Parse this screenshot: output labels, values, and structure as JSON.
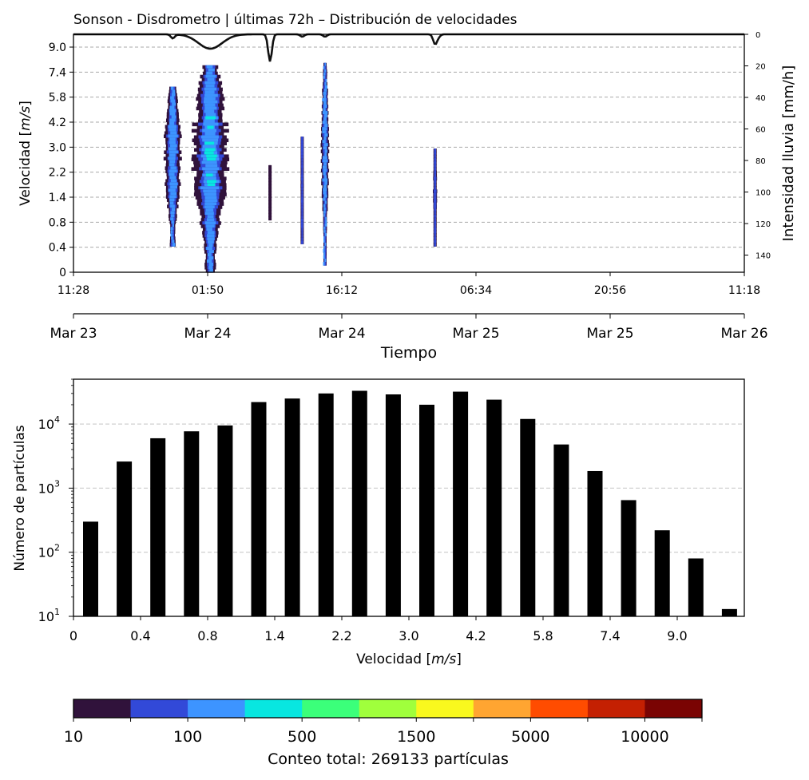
{
  "title": "Sonson - Disdrometro | últimas 72h – Distribución de velocidades",
  "chart_data": [
    {
      "type": "heatmap",
      "ylabel": "Velocidad [$m/s$]",
      "ylabel_text": "Velocidad [m/s]",
      "ylabel_unit_plain_1": "Velocidad [",
      "ylabel_unit_italic": "m/s",
      "ylabel_unit_plain_2": "]",
      "y2label": "Intensidad lluvia [mm/h]",
      "xlabel": "Tiempo",
      "y_ticks": [
        "0",
        "0.4",
        "0.8",
        "1.4",
        "2.2",
        "3.0",
        "4.2",
        "5.8",
        "7.4",
        "9.0"
      ],
      "y2_ticks": [
        "0",
        "20",
        "40",
        "60",
        "80",
        "100",
        "120",
        "140"
      ],
      "x_time_ticks": [
        "11:28",
        "01:50",
        "16:12",
        "06:34",
        "20:56",
        "11:18"
      ],
      "x_date_ticks": [
        "Mar 23",
        "Mar 24",
        "Mar 24",
        "Mar 25",
        "Mar 25",
        "Mar 26"
      ],
      "grid": "horizontal dashed",
      "y2_inverted": true,
      "rain_events_time_fraction": [
        0.148,
        0.204,
        0.293,
        0.341,
        0.375,
        0.539,
        0.544
      ],
      "rain_line_color": "#111111"
    },
    {
      "type": "bar",
      "xlabel": "Velocidad [m/s]",
      "xlabel_plain_1": "Velocidad [",
      "xlabel_italic": "m/s",
      "xlabel_plain_2": "]",
      "ylabel": "Número de partículas",
      "yscale": "log",
      "ylim": [
        10,
        50000
      ],
      "y_ticks": [
        "10",
        "10",
        "10",
        "10"
      ],
      "y_tick_exps": [
        "1",
        "2",
        "3",
        "4"
      ],
      "x_ticks": [
        "0",
        "0.4",
        "0.8",
        "1.4",
        "2.2",
        "3.0",
        "4.2",
        "5.8",
        "7.4",
        "9.0"
      ],
      "values": [
        300,
        2600,
        6000,
        7700,
        9500,
        22000,
        25000,
        30000,
        33000,
        29000,
        20000,
        32000,
        24000,
        12000,
        4800,
        1850,
        650,
        220,
        80,
        13
      ],
      "bar_color": "#000000",
      "grid": "horizontal dashed"
    },
    {
      "type": "colorbar",
      "label": "Conteo total: 269133 partículas",
      "tick_labels": [
        "10",
        "100",
        "500",
        "1500",
        "5000",
        "10000"
      ],
      "colors": [
        "#30123b",
        "#3249d8",
        "#3d94ff",
        "#08e6e0",
        "#3bff7a",
        "#a0ff3c",
        "#f9f81e",
        "#ffa531",
        "#ff4c00",
        "#c42002",
        "#7a0403"
      ]
    }
  ]
}
